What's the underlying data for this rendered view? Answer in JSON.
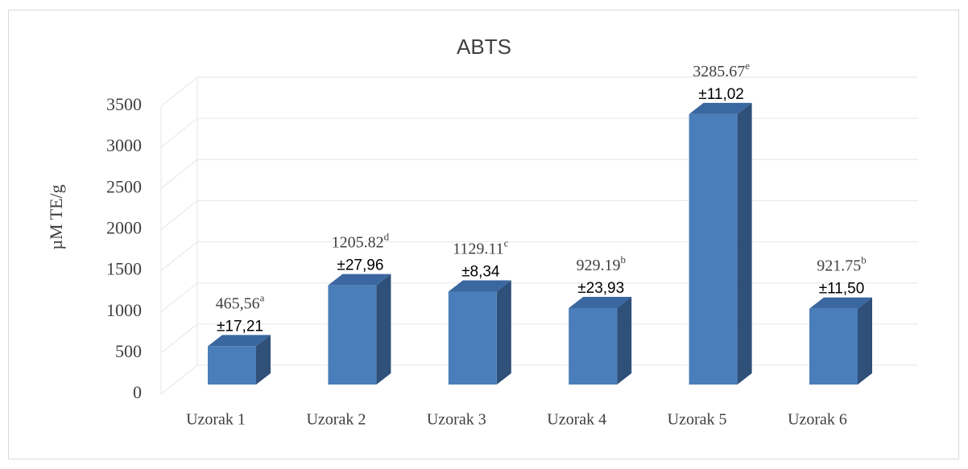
{
  "chart_data": {
    "type": "bar3d",
    "title": "ABTS",
    "y_label": "µM TE/g",
    "categories": [
      "Uzorak 1",
      "Uzorak 2",
      "Uzorak 3",
      "Uzorak 4",
      "Uzorak 5",
      "Uzorak 6"
    ],
    "values": [
      465.56,
      1205.82,
      1129.11,
      929.19,
      3285.67,
      921.75
    ],
    "value_labels": [
      "465,56",
      "1205.82",
      "1129.11",
      "929.19",
      "3285.67",
      "921.75"
    ],
    "letters": [
      "a",
      "d",
      "c",
      "b",
      "e",
      "b"
    ],
    "error_labels": [
      "±17,21",
      "±27,96",
      "±8,34",
      "±23,93",
      "±11,02",
      "±11,50"
    ],
    "color": "#4a7ebb",
    "ylim": [
      0,
      3500
    ],
    "yticks": [
      0,
      500,
      1000,
      1500,
      2000,
      2500,
      3000,
      3500
    ],
    "grid": true
  }
}
